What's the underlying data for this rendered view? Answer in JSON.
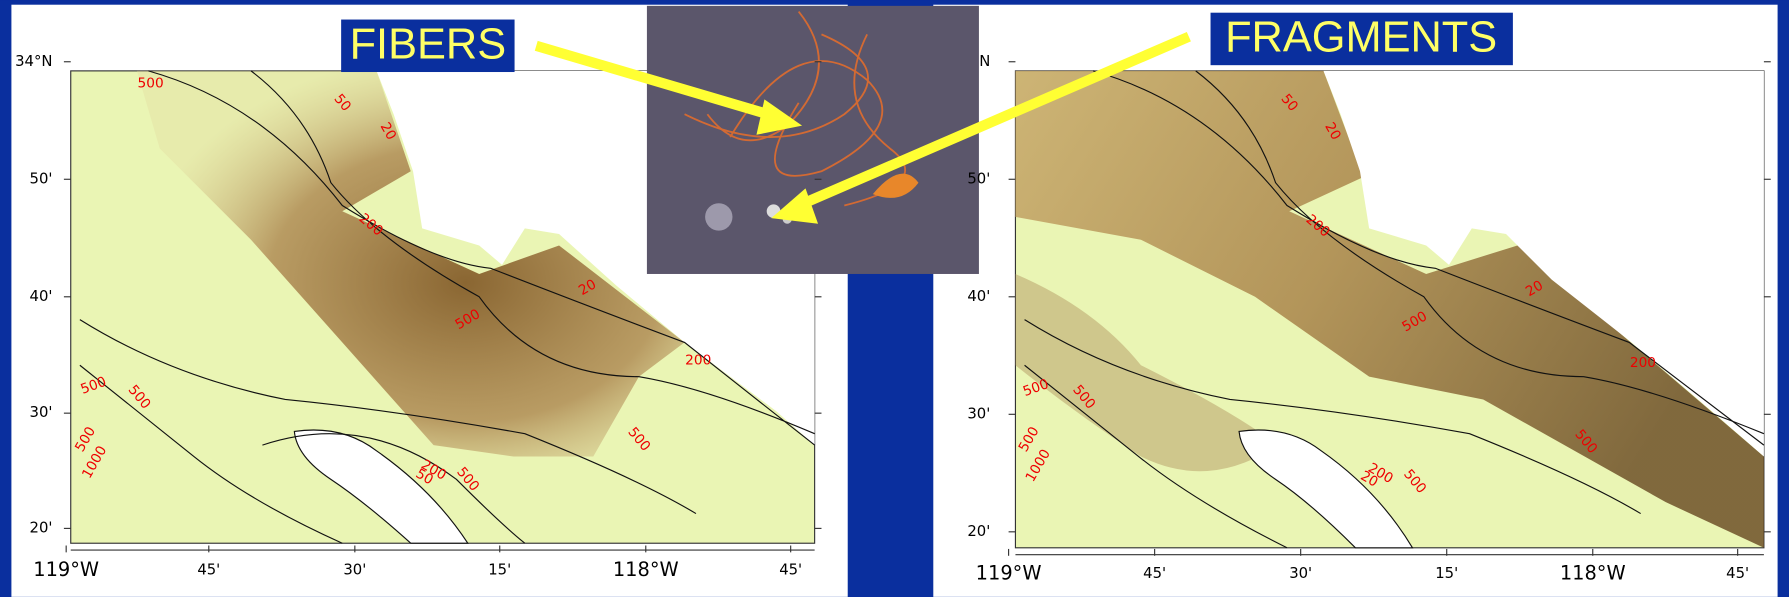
{
  "labels": {
    "fibers": "FIBERS",
    "fragments": "FRAGMENTS"
  },
  "maps": [
    {
      "lat_ticks": [
        "34°N",
        "50'",
        "40'",
        "30'",
        "20'"
      ],
      "lon_ticks": [
        "119°W",
        "45'",
        "30'",
        "15'",
        "118°W",
        "45'"
      ],
      "contours": [
        "500",
        "50",
        "20",
        "200",
        "20",
        "500",
        "200",
        "500",
        "500",
        "500",
        "1000",
        "200",
        "50",
        "500",
        "500"
      ]
    },
    {
      "lat_ticks": [
        "N",
        "50'",
        "40'",
        "30'",
        "20'"
      ],
      "lon_ticks": [
        "119°W",
        "45'",
        "30'",
        "15'",
        "118°W",
        "45'"
      ],
      "contours": [
        "50",
        "20",
        "200",
        "20",
        "500",
        "200",
        "500",
        "500",
        "500",
        "1000",
        "200",
        "20",
        "500",
        "500"
      ]
    }
  ]
}
